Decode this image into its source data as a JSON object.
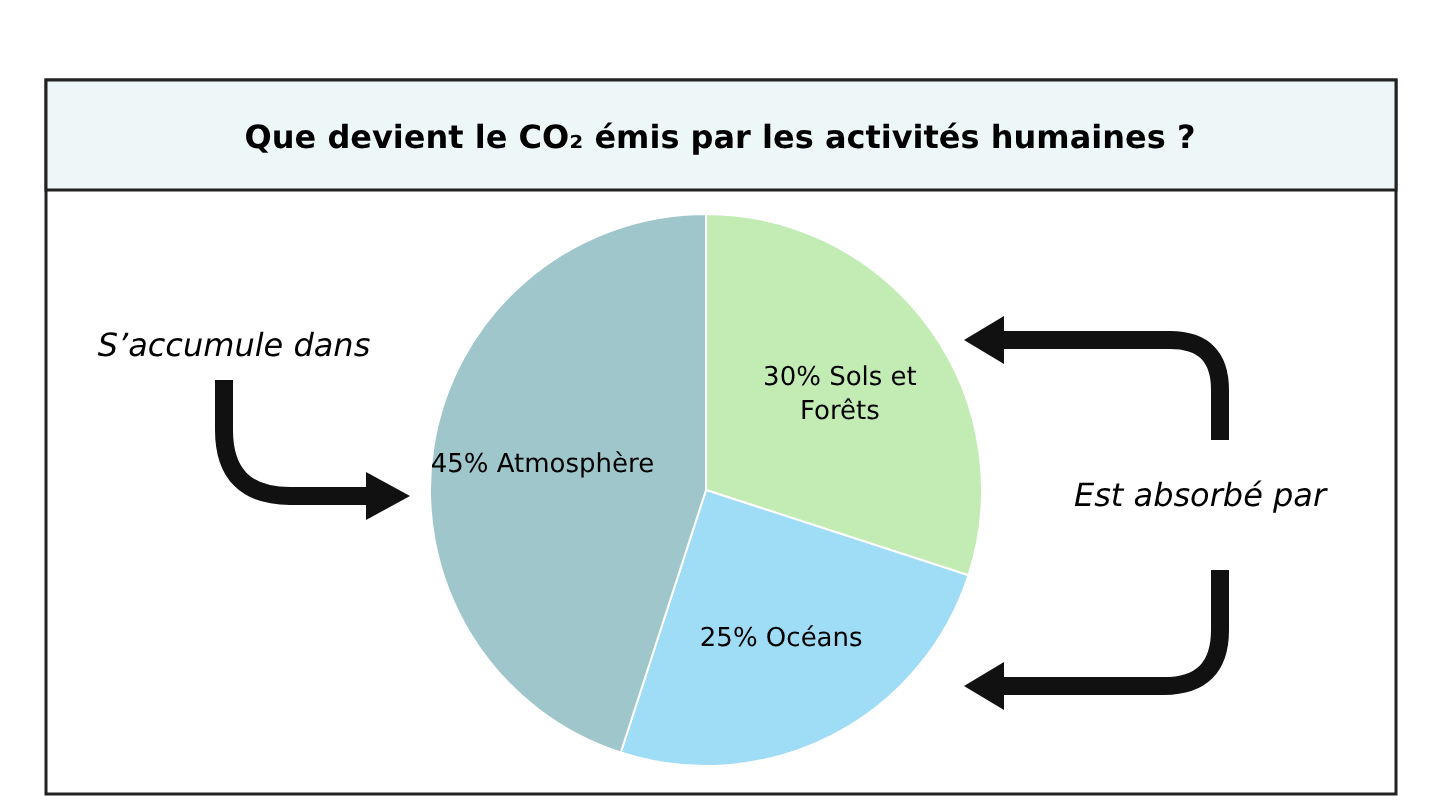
{
  "chart_data": {
    "type": "pie",
    "title": "Que devient le CO₂ émis par les activités humaines ?",
    "categories": [
      "Sols et Forêts",
      "Océans",
      "Atmosphère"
    ],
    "values": [
      30,
      25,
      45
    ],
    "value_labels": [
      "30%",
      "25%",
      "45%"
    ],
    "colors": [
      "#c3ecb5",
      "#9fdcf5",
      "#9fc6cb"
    ],
    "annotations": [
      "S’accumule dans",
      "Est absorbé par"
    ]
  }
}
